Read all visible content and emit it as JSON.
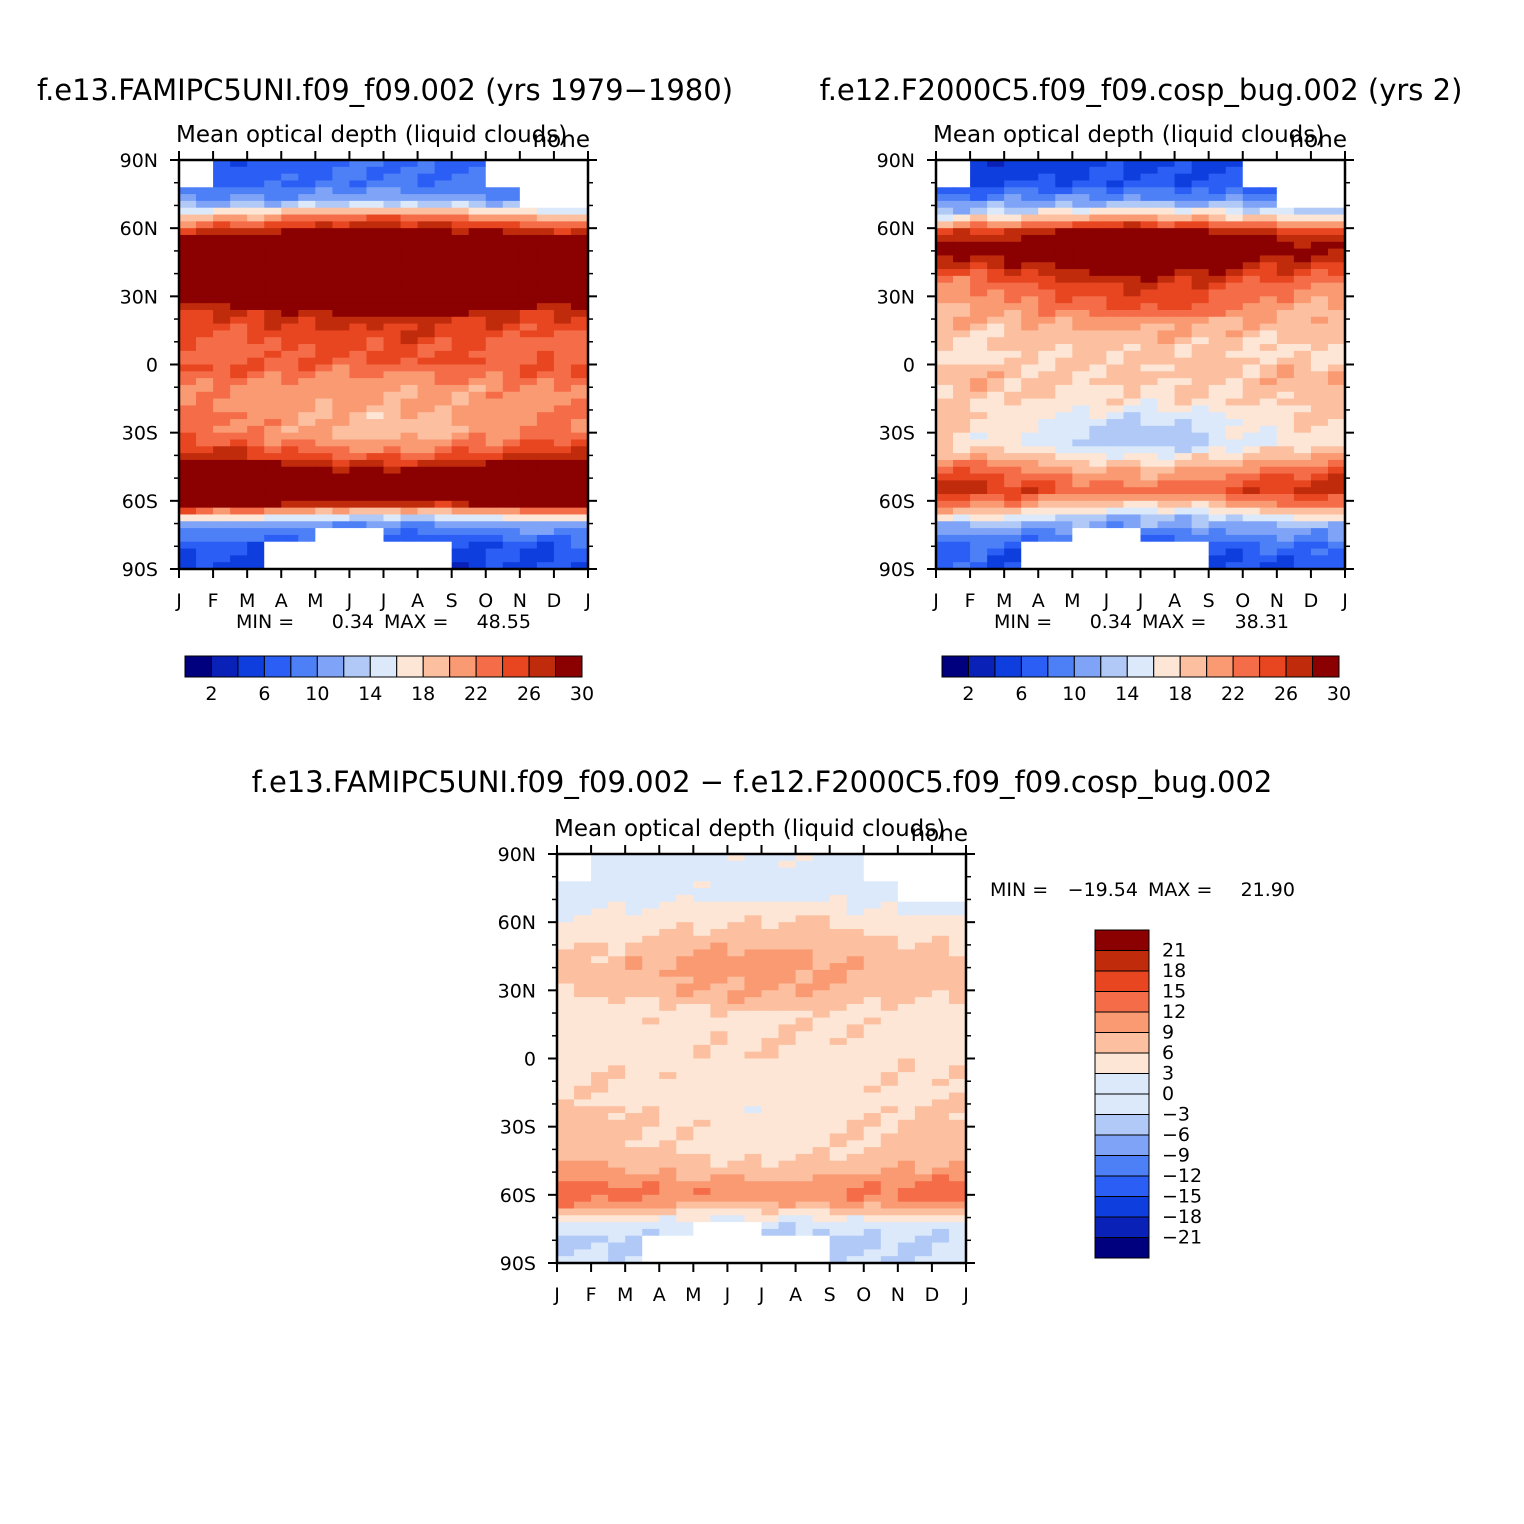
{
  "chart_data": [
    {
      "type": "heatmap",
      "run_title": "f.e13.FAMIPC5UNI.f09_f09.002 (yrs 1979−1980)",
      "title": "Mean optical depth (liquid clouds)",
      "units": "none",
      "x_tick_labels": [
        "J",
        "F",
        "M",
        "A",
        "M",
        "J",
        "J",
        "A",
        "S",
        "O",
        "N",
        "D",
        "J"
      ],
      "y_tick_labels": [
        "90N",
        "60N",
        "30N",
        "0",
        "30S",
        "60S",
        "90S"
      ],
      "ylim": [
        -90,
        90
      ],
      "min_label": "MIN =",
      "min_value": "0.34",
      "max_label": "MAX =",
      "max_value": "48.55",
      "colorbar_levels": [
        "2",
        "6",
        "10",
        "14",
        "18",
        "22",
        "26",
        "30"
      ],
      "latitude_profile": [
        [
          -90,
          5
        ],
        [
          -80,
          6
        ],
        [
          -70,
          11
        ],
        [
          -65,
          20
        ],
        [
          -60,
          32
        ],
        [
          -50,
          33
        ],
        [
          -40,
          25
        ],
        [
          -30,
          21
        ],
        [
          -20,
          21
        ],
        [
          -10,
          21
        ],
        [
          0,
          24
        ],
        [
          10,
          24
        ],
        [
          20,
          26
        ],
        [
          30,
          32
        ],
        [
          45,
          34
        ],
        [
          55,
          32
        ],
        [
          65,
          21
        ],
        [
          72,
          11
        ],
        [
          80,
          8
        ],
        [
          90,
          7
        ]
      ]
    },
    {
      "type": "heatmap",
      "run_title": "f.e12.F2000C5.f09_f09.cosp_bug.002 (yrs 2)",
      "title": "Mean optical depth (liquid clouds)",
      "units": "none",
      "x_tick_labels": [
        "J",
        "F",
        "M",
        "A",
        "M",
        "J",
        "J",
        "A",
        "S",
        "O",
        "N",
        "D",
        "J"
      ],
      "y_tick_labels": [
        "90N",
        "60N",
        "30N",
        "0",
        "30S",
        "60S",
        "90S"
      ],
      "ylim": [
        -90,
        90
      ],
      "min_label": "MIN =",
      "min_value": "0.34",
      "max_label": "MAX =",
      "max_value": "38.31",
      "colorbar_levels": [
        "2",
        "6",
        "10",
        "14",
        "18",
        "22",
        "26",
        "30"
      ],
      "latitude_profile": [
        [
          -90,
          6
        ],
        [
          -80,
          7
        ],
        [
          -70,
          12
        ],
        [
          -62,
          20
        ],
        [
          -55,
          25
        ],
        [
          -45,
          21
        ],
        [
          -35,
          15
        ],
        [
          -25,
          16
        ],
        [
          -15,
          18
        ],
        [
          -5,
          19
        ],
        [
          5,
          18
        ],
        [
          15,
          19
        ],
        [
          25,
          22
        ],
        [
          35,
          24
        ],
        [
          50,
          31
        ],
        [
          58,
          28
        ],
        [
          65,
          18
        ],
        [
          72,
          10
        ],
        [
          80,
          6
        ],
        [
          90,
          5
        ]
      ]
    },
    {
      "type": "heatmap",
      "run_title": "f.e13.FAMIPC5UNI.f09_f09.002 − f.e12.F2000C5.f09_f09.cosp_bug.002",
      "title": "Mean optical depth (liquid clouds)",
      "units": "none",
      "x_tick_labels": [
        "J",
        "F",
        "M",
        "A",
        "M",
        "J",
        "J",
        "A",
        "S",
        "O",
        "N",
        "D",
        "J"
      ],
      "y_tick_labels": [
        "90N",
        "60N",
        "30N",
        "0",
        "30S",
        "60S",
        "90S"
      ],
      "ylim": [
        -90,
        90
      ],
      "min_label": "MIN =",
      "min_value": "−19.54",
      "max_label": "MAX =",
      "max_value": "21.90",
      "colorbar_levels": [
        "21",
        "18",
        "15",
        "12",
        "9",
        "6",
        "3",
        "0",
        "−3",
        "−6",
        "−9",
        "−12",
        "−15",
        "−18",
        "−21"
      ],
      "latitude_profile": [
        [
          -90,
          0
        ],
        [
          -80,
          -1
        ],
        [
          -72,
          2
        ],
        [
          -65,
          9
        ],
        [
          -60,
          13
        ],
        [
          -50,
          9
        ],
        [
          -40,
          6
        ],
        [
          -30,
          6
        ],
        [
          -20,
          5
        ],
        [
          -10,
          5
        ],
        [
          0,
          5
        ],
        [
          10,
          5
        ],
        [
          20,
          5
        ],
        [
          30,
          8
        ],
        [
          40,
          9
        ],
        [
          50,
          7
        ],
        [
          60,
          5
        ],
        [
          70,
          2
        ],
        [
          80,
          1
        ],
        [
          90,
          2
        ]
      ]
    }
  ],
  "colors": {
    "palette": [
      "#00007f",
      "#0a21b8",
      "#0f3ede",
      "#2a5ef5",
      "#4d80f7",
      "#7fa4f7",
      "#b0c9f7",
      "#dce9fb",
      "#fde6d6",
      "#fcc0a0",
      "#fa9a72",
      "#f56d48",
      "#e84620",
      "#c02b0c",
      "#8b0000"
    ],
    "missing": "#ffffff"
  }
}
